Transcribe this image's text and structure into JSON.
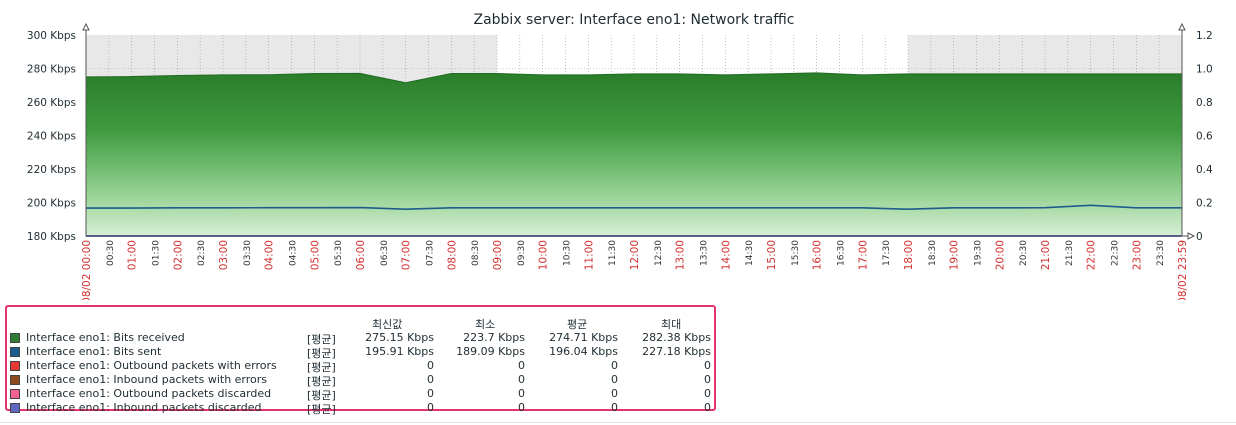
{
  "chart_data": {
    "type": "area",
    "title": "Zabbix server: Interface eno1: Network traffic",
    "y_left": {
      "min": 180,
      "max": 300,
      "ticks": [
        "300 Kbps",
        "280 Kbps",
        "260 Kbps",
        "240 Kbps",
        "220 Kbps",
        "200 Kbps",
        "180 Kbps"
      ]
    },
    "y_right": {
      "min": 0,
      "max": 1.2,
      "ticks": [
        "1.2",
        "1.0",
        "0.8",
        "0.6",
        "0.4",
        "0.2",
        "0"
      ]
    },
    "x_start_label": "08/02 00:00",
    "x_end_label": "08/02 23:59",
    "x_tick_labels": [
      "00:30",
      "01:00",
      "01:30",
      "02:00",
      "02:30",
      "03:00",
      "03:30",
      "04:00",
      "04:30",
      "05:00",
      "05:30",
      "06:00",
      "06:30",
      "07:00",
      "07:30",
      "08:00",
      "08:30",
      "09:00",
      "09:30",
      "10:00",
      "10:30",
      "11:00",
      "11:30",
      "12:00",
      "12:30",
      "13:00",
      "13:30",
      "14:00",
      "14:30",
      "15:00",
      "15:30",
      "16:00",
      "16:30",
      "17:00",
      "17:30",
      "18:00",
      "18:30",
      "19:00",
      "19:30",
      "20:00",
      "20:30",
      "21:00",
      "21:30",
      "22:00",
      "22:30",
      "23:00",
      "23:30"
    ],
    "work_period": [
      "09:00",
      "18:00"
    ],
    "x_hours": [
      0,
      1,
      2,
      3,
      4,
      5,
      6,
      7,
      8,
      9,
      10,
      11,
      12,
      13,
      14,
      15,
      16,
      17,
      18,
      19,
      20,
      21,
      22,
      23,
      24
    ],
    "series": [
      {
        "name": "Interface eno1: Bits received",
        "unit": "Kbps",
        "color": "#2e7d32",
        "values": [
          275.0,
          275.2,
          275.8,
          276.2,
          276.3,
          277.0,
          277.1,
          271.5,
          277.0,
          277.0,
          276.2,
          276.2,
          276.8,
          276.8,
          276.2,
          276.8,
          277.4,
          276.2,
          276.8,
          276.8,
          276.8,
          276.8,
          276.8,
          276.8,
          276.8
        ]
      },
      {
        "name": "Interface eno1: Bits sent",
        "unit": "Kbps",
        "color": "#1e5c8c",
        "values": [
          196.7,
          196.7,
          196.8,
          196.8,
          196.9,
          196.9,
          197.0,
          196.0,
          196.8,
          196.8,
          196.8,
          196.8,
          196.8,
          196.8,
          196.8,
          196.8,
          196.8,
          196.8,
          196.0,
          196.8,
          196.8,
          196.9,
          198.3,
          196.8,
          196.8
        ]
      },
      {
        "name": "Interface eno1: Outbound packets with errors",
        "color": "#e53935",
        "values": [
          0
        ]
      },
      {
        "name": "Interface eno1: Inbound packets with errors",
        "color": "#8d4a1f",
        "values": [
          0
        ]
      },
      {
        "name": "Interface eno1: Outbound packets discarded",
        "color": "#f06292",
        "values": [
          0
        ]
      },
      {
        "name": "Interface eno1: Inbound packets discarded",
        "color": "#5c6bc0",
        "values": [
          0
        ]
      }
    ]
  },
  "legend": {
    "headers": {
      "last": "최신값",
      "min": "최소",
      "avg": "평균",
      "max": "최대"
    },
    "rows": [
      {
        "name": "Interface eno1: Bits received",
        "func": "[평균]",
        "color": "#2e7d32",
        "last": "275.15 Kbps",
        "min": "223.7 Kbps",
        "avg": "274.71 Kbps",
        "max": "282.38 Kbps"
      },
      {
        "name": "Interface eno1: Bits sent",
        "func": "[평균]",
        "color": "#1e5c8c",
        "last": "195.91 Kbps",
        "min": "189.09 Kbps",
        "avg": "196.04 Kbps",
        "max": "227.18 Kbps"
      },
      {
        "name": "Interface eno1: Outbound packets with errors",
        "func": "[평균]",
        "color": "#e53935",
        "last": "0",
        "min": "0",
        "avg": "0",
        "max": "0"
      },
      {
        "name": "Interface eno1: Inbound packets with errors",
        "func": "[평균]",
        "color": "#8d4a1f",
        "last": "0",
        "min": "0",
        "avg": "0",
        "max": "0"
      },
      {
        "name": "Interface eno1: Outbound packets discarded",
        "func": "[평균]",
        "color": "#f06292",
        "last": "0",
        "min": "0",
        "avg": "0",
        "max": "0"
      },
      {
        "name": "Interface eno1: Inbound packets discarded",
        "func": "[평균]",
        "color": "#5c6bc0",
        "last": "0",
        "min": "0",
        "avg": "0",
        "max": "0"
      }
    ]
  }
}
